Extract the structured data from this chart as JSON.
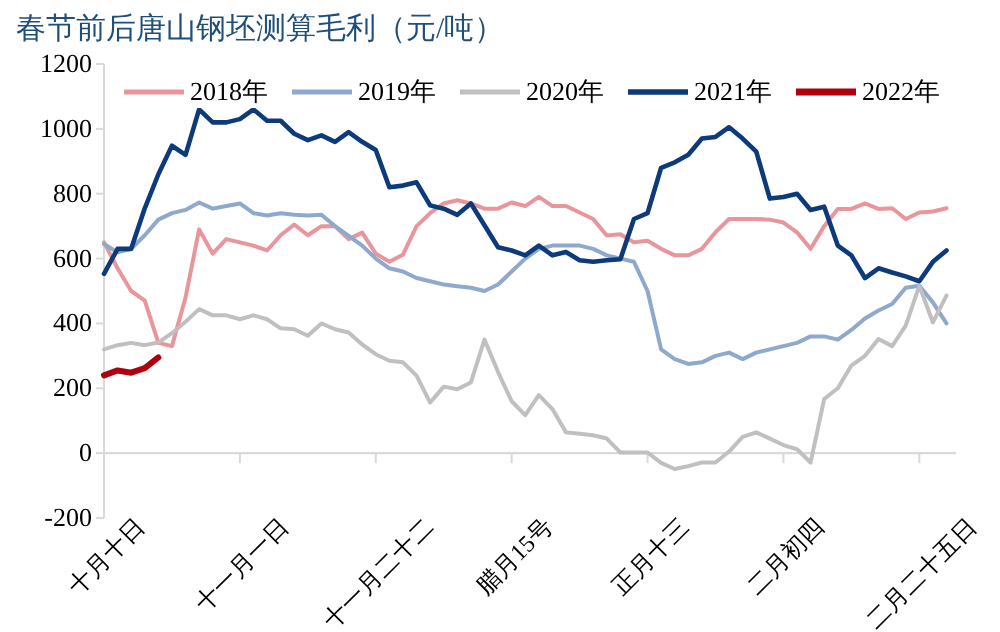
{
  "chart_data": {
    "type": "line",
    "title": "春节前后唐山钢坯测算毛利（元/吨）",
    "categories": [
      "十月十日",
      null,
      null,
      null,
      null,
      null,
      null,
      null,
      null,
      null,
      "十一月一日",
      null,
      null,
      null,
      null,
      null,
      null,
      null,
      null,
      null,
      "十一月二十二",
      null,
      null,
      null,
      null,
      null,
      null,
      null,
      null,
      null,
      "腊月15号",
      null,
      null,
      null,
      null,
      null,
      null,
      null,
      null,
      null,
      "正月十三",
      null,
      null,
      null,
      null,
      null,
      null,
      null,
      null,
      null,
      "二月初四",
      null,
      null,
      null,
      null,
      null,
      null,
      null,
      null,
      null,
      "二月二十五日",
      null,
      null
    ],
    "series": [
      {
        "name": "2018年",
        "color": "#e8959b",
        "values": [
          650,
          570,
          500,
          470,
          340,
          330,
          480,
          690,
          615,
          660,
          650,
          640,
          625,
          672,
          705,
          672,
          700,
          700,
          660,
          680,
          615,
          590,
          612,
          700,
          740,
          770,
          780,
          770,
          754,
          754,
          773,
          762,
          790,
          762,
          762,
          742,
          722,
          671,
          675,
          650,
          655,
          630,
          610,
          610,
          630,
          681,
          722,
          722,
          722,
          720,
          711,
          681,
          630,
          700,
          753,
          753,
          770,
          753,
          755,
          722,
          742,
          745,
          755
        ]
      },
      {
        "name": "2019年",
        "color": "#8ea9cc",
        "values": [
          645,
          619,
          630,
          672,
          720,
          740,
          750,
          773,
          754,
          762,
          770,
          740,
          733,
          740,
          735,
          733,
          735,
          700,
          670,
          640,
          600,
          570,
          560,
          540,
          530,
          520,
          515,
          510,
          500,
          520,
          560,
          600,
          630,
          640,
          640,
          640,
          630,
          610,
          600,
          590,
          500,
          320,
          290,
          275,
          280,
          300,
          310,
          290,
          310,
          320,
          330,
          340,
          360,
          360,
          350,
          380,
          415,
          440,
          460,
          510,
          516,
          465,
          400
        ]
      },
      {
        "name": "2020年",
        "color": "#c0c0c0",
        "values": [
          320,
          333,
          340,
          333,
          341,
          370,
          405,
          444,
          425,
          425,
          413,
          425,
          413,
          385,
          382,
          362,
          400,
          382,
          372,
          335,
          305,
          285,
          280,
          239,
          156,
          205,
          197,
          218,
          350,
          250,
          160,
          117,
          179,
          136,
          64,
          60,
          55,
          45,
          2,
          2,
          2,
          -30,
          -49,
          -40,
          -29,
          -29,
          5,
          50,
          64,
          45,
          25,
          12,
          -29,
          167,
          200,
          270,
          300,
          352,
          330,
          393,
          516,
          403,
          486
        ]
      },
      {
        "name": "2021年",
        "color": "#0d3a7a",
        "values": [
          553,
          630,
          630,
          755,
          860,
          948,
          920,
          1060,
          1020,
          1020,
          1030,
          1060,
          1025,
          1025,
          985,
          965,
          980,
          960,
          990,
          960,
          935,
          820,
          825,
          835,
          764,
          754,
          735,
          770,
          703,
          635,
          625,
          610,
          640,
          610,
          620,
          595,
          590,
          595,
          598,
          722,
          740,
          880,
          897,
          920,
          970,
          975,
          1005,
          970,
          930,
          785,
          790,
          800,
          750,
          760,
          640,
          610,
          540,
          570,
          557,
          545,
          530,
          590,
          625
        ]
      },
      {
        "name": "2022年",
        "color": "#b00010",
        "values": [
          240,
          255,
          248,
          262,
          295,
          null,
          null,
          null,
          null,
          null,
          null,
          null,
          null,
          null,
          null,
          null,
          null,
          null,
          null,
          null,
          null,
          null,
          null,
          null,
          null,
          null,
          null,
          null,
          null,
          null,
          null,
          null,
          null,
          null,
          null,
          null,
          null,
          null,
          null,
          null,
          null,
          null,
          null,
          null,
          null,
          null,
          null,
          null,
          null,
          null,
          null,
          null,
          null,
          null,
          null,
          null,
          null,
          null,
          null,
          null,
          null,
          null,
          null
        ]
      }
    ],
    "ylim": [
      -200,
      1200
    ],
    "yticks": [
      -200,
      0,
      200,
      400,
      600,
      800,
      1000,
      1200
    ],
    "legend": "top"
  }
}
